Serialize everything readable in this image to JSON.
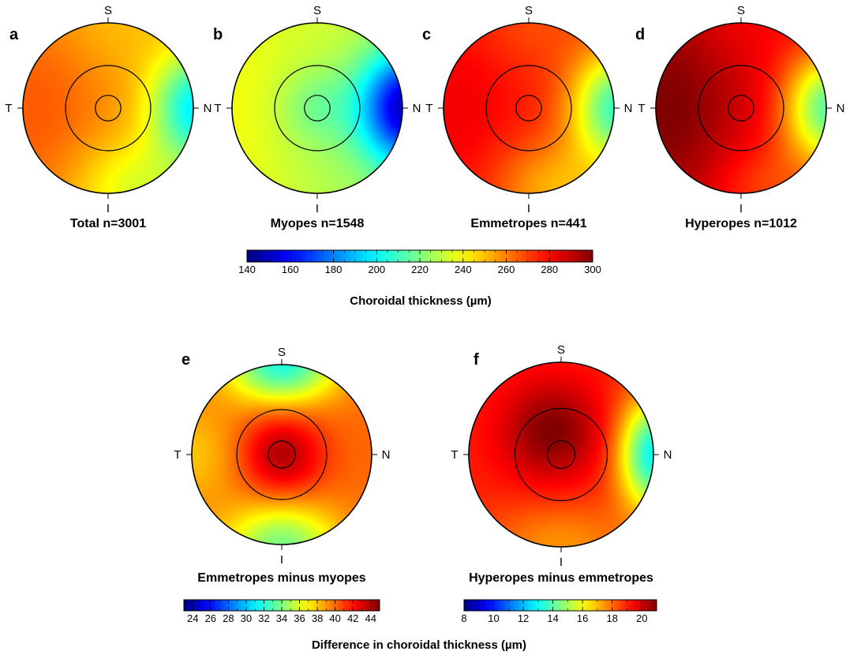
{
  "chart_data": [
    {
      "type": "heatmap",
      "panel": "a",
      "title": "Total n=3001",
      "orientation": {
        "top": "S",
        "bottom": "I",
        "left": "T",
        "right": "N"
      },
      "colorscale": "top",
      "model": {
        "base": 256,
        "nasal_min": 198,
        "temporal_max": 266,
        "inferior_dip": 235,
        "superior_dip": 250,
        "center_offset": 0
      }
    },
    {
      "type": "heatmap",
      "panel": "b",
      "title": "Myopes n=1548",
      "orientation": {
        "top": "S",
        "bottom": "I",
        "left": "T",
        "right": "N"
      },
      "colorscale": "top",
      "model": {
        "base": 232,
        "nasal_min": 150,
        "temporal_max": 238,
        "inferior_dip": 228,
        "superior_dip": 232,
        "center_offset": -15
      }
    },
    {
      "type": "heatmap",
      "panel": "c",
      "title": "Emmetropes n=441",
      "orientation": {
        "top": "S",
        "bottom": "I",
        "left": "T",
        "right": "N"
      },
      "colorscale": "top",
      "model": {
        "base": 275,
        "nasal_min": 210,
        "temporal_max": 282,
        "inferior_dip": 252,
        "superior_dip": 268,
        "center_offset": 0
      }
    },
    {
      "type": "heatmap",
      "panel": "d",
      "title": "Hyperopes n=1012",
      "orientation": {
        "top": "S",
        "bottom": "I",
        "left": "T",
        "right": "N"
      },
      "colorscale": "top",
      "model": {
        "base": 285,
        "nasal_min": 215,
        "temporal_max": 300,
        "inferior_dip": 270,
        "superior_dip": 280,
        "center_offset": 0
      }
    },
    {
      "type": "heatmap",
      "panel": "e",
      "title": "Emmetropes minus myopes",
      "orientation": {
        "top": "S",
        "bottom": "I",
        "left": "T",
        "right": "N"
      },
      "colorscale": "bottom-left",
      "model": {
        "center": 44,
        "mid": 40,
        "superior": 32,
        "inferior": 34,
        "temporal": 38,
        "nasal": 38
      }
    },
    {
      "type": "heatmap",
      "panel": "f",
      "title": "Hyperopes minus emmetropes",
      "orientation": {
        "top": "S",
        "bottom": "I",
        "left": "T",
        "right": "N"
      },
      "colorscale": "bottom-right",
      "model": {
        "peak": 21,
        "base": 19,
        "nasal": 13,
        "superior_temporal_peak": true
      }
    }
  ],
  "colorbars": {
    "top": {
      "min": 140,
      "max": 300,
      "ticks": [
        140,
        160,
        180,
        200,
        220,
        240,
        260,
        280,
        300
      ],
      "label": "Choroidal thickness (µm)"
    },
    "bottom_left": {
      "min": 23,
      "max": 45,
      "ticks": [
        24,
        26,
        28,
        30,
        32,
        34,
        36,
        38,
        40,
        42,
        44
      ]
    },
    "bottom_right": {
      "min": 8,
      "max": 21,
      "ticks": [
        8,
        10,
        12,
        14,
        16,
        18,
        20
      ]
    },
    "bottom_label": "Difference in choroidal thickness (µm)"
  },
  "colormap": "jet",
  "direction_labels": {
    "superior": "S",
    "inferior": "I",
    "temporal": "T",
    "nasal": "N"
  },
  "panel_letters": [
    "a",
    "b",
    "c",
    "d",
    "e",
    "f"
  ]
}
